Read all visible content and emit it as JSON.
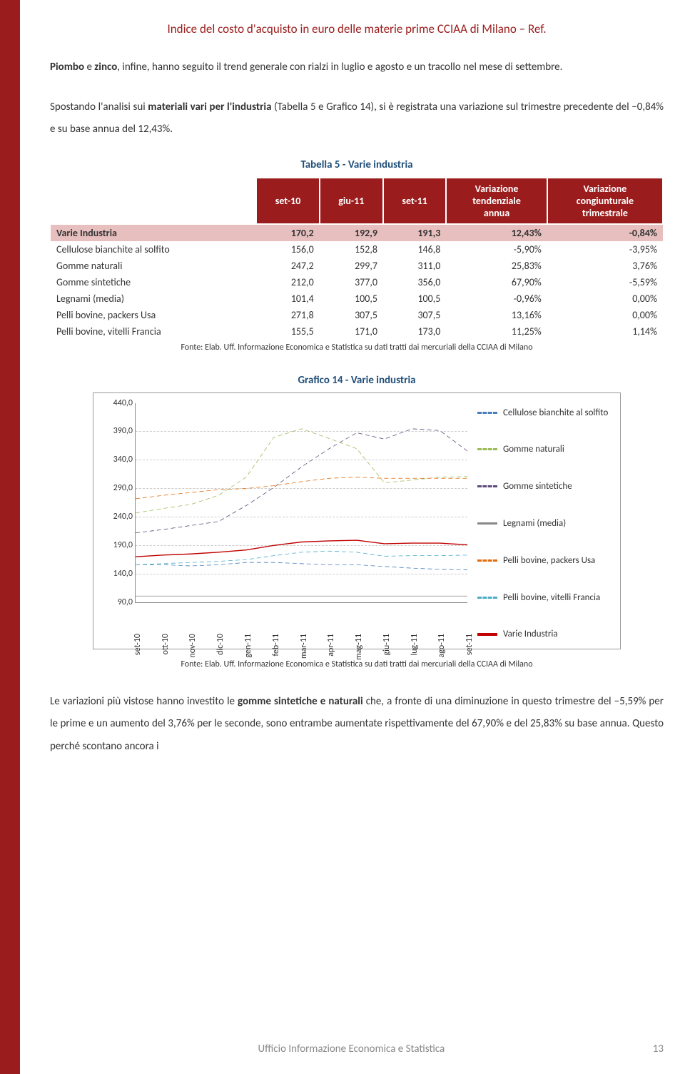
{
  "doc_title": "Indice del costo d'acquisto in euro delle materie prime CCIAA di Milano – Ref.",
  "para1_a": "Piombo",
  "para1_b": " e ",
  "para1_c": "zinco",
  "para1_d": ", infine, hanno seguito il trend generale con rialzi in luglio e agosto e un tracollo nel mese di settembre.",
  "para2_a": "Spostando l'analisi sui ",
  "para2_b": "materiali vari per l'industria",
  "para2_c": " (Tabella 5 e Grafico 14), si è registrata una variazione sul trimestre precedente del −0,84% e su base annua del 12,43%.",
  "table_caption": "Tabella 5 - Varie industria",
  "th": [
    "",
    "set-10",
    "giu-11",
    "set-11",
    "Variazione tendenziale annua",
    "Variazione congiunturale trimestrale"
  ],
  "rows": [
    [
      "Varie Industria",
      "170,2",
      "192,9",
      "191,3",
      "12,43%",
      "-0,84%"
    ],
    [
      "Cellulose bianchite al solfito",
      "156,0",
      "152,8",
      "146,8",
      "-5,90%",
      "-3,95%"
    ],
    [
      "Gomme naturali",
      "247,2",
      "299,7",
      "311,0",
      "25,83%",
      "3,76%"
    ],
    [
      "Gomme sintetiche",
      "212,0",
      "377,0",
      "356,0",
      "67,90%",
      "-5,59%"
    ],
    [
      "Legnami (media)",
      "101,4",
      "100,5",
      "100,5",
      "-0,96%",
      "0,00%"
    ],
    [
      "Pelli bovine, packers Usa",
      "271,8",
      "307,5",
      "307,5",
      "13,16%",
      "0,00%"
    ],
    [
      "Pelli bovine, vitelli Francia",
      "155,5",
      "171,0",
      "173,0",
      "11,25%",
      "1,14%"
    ]
  ],
  "source": "Fonte: Elab. Uff. Informazione Economica e Statistica su dati tratti dai mercuriali della CCIAA di Milano",
  "chart_caption": "Grafico 14 - Varie industria",
  "chart": {
    "ymin": 90,
    "ymax": 440,
    "ystep": 50,
    "yticks": [
      "90,0",
      "140,0",
      "190,0",
      "240,0",
      "290,0",
      "340,0",
      "390,0",
      "440,0"
    ],
    "xticks": [
      "set-10",
      "ott-10",
      "nov-10",
      "dic-10",
      "gen-11",
      "feb-11",
      "mar-11",
      "apr-11",
      "mag-11",
      "giu-11",
      "lug-11",
      "ago-11",
      "set-11"
    ],
    "series": [
      {
        "name": "Cellulose bianchite al solfito",
        "color": "#4a7ebb",
        "dash": "6 4",
        "data": [
          156,
          156,
          154,
          156,
          160,
          160,
          158,
          156,
          156,
          153,
          150,
          148,
          147
        ]
      },
      {
        "name": "Gomme naturali",
        "color": "#9bbb59",
        "dash": "6 4",
        "data": [
          247,
          255,
          262,
          278,
          310,
          380,
          395,
          378,
          360,
          300,
          305,
          310,
          311
        ]
      },
      {
        "name": "Gomme sintetiche",
        "color": "#604a7b",
        "dash": "6 4",
        "data": [
          212,
          218,
          225,
          232,
          260,
          292,
          328,
          360,
          388,
          377,
          395,
          392,
          356
        ]
      },
      {
        "name": "Legnami (media)",
        "color": "#888888",
        "dash": null,
        "data": [
          101,
          101,
          101,
          101,
          101,
          101,
          101,
          101,
          101,
          101,
          101,
          101,
          101
        ]
      },
      {
        "name": "Pelli bovine, packers Usa",
        "color": "#e46c0a",
        "dash": "6 4",
        "data": [
          272,
          278,
          283,
          288,
          290,
          295,
          302,
          308,
          310,
          308,
          308,
          308,
          308
        ]
      },
      {
        "name": "Pelli bovine, vitelli Francia",
        "color": "#4bacc6",
        "dash": "6 4",
        "data": [
          156,
          158,
          160,
          162,
          165,
          172,
          178,
          180,
          178,
          171,
          172,
          172,
          173
        ]
      },
      {
        "name": "Varie Industria",
        "color": "#c00000",
        "dash": null,
        "data": [
          170,
          173,
          175,
          178,
          182,
          190,
          196,
          198,
          199,
          193,
          194,
          194,
          191
        ]
      }
    ]
  },
  "para3_a": "Le variazioni più vistose hanno investito le ",
  "para3_b": "gomme sintetiche e naturali",
  "para3_c": " che, a fronte di una diminuzione in questo trimestre del −5,59% per le prime e un aumento del 3,76% per le seconde, sono entrambe aumentate rispettivamente del 67,90% e del 25,83% su base annua. Questo perché scontano ancora i",
  "footer_office": "Ufficio Informazione Economica e Statistica",
  "page_num": "13"
}
